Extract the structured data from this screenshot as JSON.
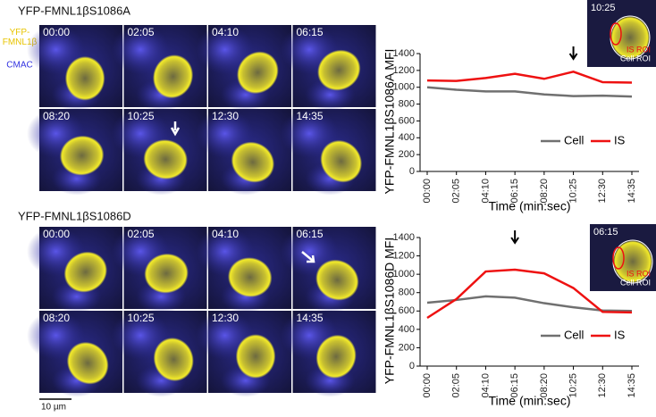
{
  "chart_data": [
    {
      "type": "line",
      "y_label": "YFP-FMNL1βS1086A MFI",
      "x_label": "Time (min:sec)",
      "categories": [
        "00:00",
        "02:05",
        "04:10",
        "06:15",
        "08:20",
        "10:25",
        "12:30",
        "14:35"
      ],
      "series": [
        {
          "name": "Cell",
          "color": "#707070",
          "values": [
            1000,
            970,
            950,
            950,
            915,
            895,
            900,
            890
          ]
        },
        {
          "name": "IS",
          "color": "#ee1111",
          "values": [
            1080,
            1075,
            1110,
            1160,
            1100,
            1185,
            1060,
            1055
          ]
        }
      ],
      "ylim": [
        0,
        1400
      ],
      "yticks": [
        0,
        200,
        400,
        600,
        800,
        1000,
        1200,
        1400
      ],
      "legend": "lower-right"
    },
    {
      "type": "line",
      "y_label": "YFP-FMNL1βS1086D MFI",
      "x_label": "Time (min:sec)",
      "categories": [
        "00:00",
        "02:05",
        "04:10",
        "06:15",
        "08:20",
        "10:25",
        "12:30",
        "14:35"
      ],
      "series": [
        {
          "name": "Cell",
          "color": "#707070",
          "values": [
            690,
            720,
            760,
            745,
            685,
            640,
            605,
            600
          ]
        },
        {
          "name": "IS",
          "color": "#ee1111",
          "values": [
            525,
            730,
            1030,
            1050,
            1010,
            850,
            590,
            585
          ]
        }
      ],
      "ylim": [
        0,
        1400
      ],
      "yticks": [
        0,
        200,
        400,
        600,
        800,
        1000,
        1200,
        1400
      ],
      "legend": "lower-right"
    }
  ],
  "panels": [
    {
      "title": "YFP-FMNL1βS1086A",
      "inset_time": "10:25",
      "inset_is": "IS ROI",
      "inset_cell": "Cell ROI"
    },
    {
      "title": "YFP-FMNL1βS1086D",
      "inset_time": "06:15",
      "inset_is": "IS ROI",
      "inset_cell": "Cell ROI"
    }
  ],
  "channel_yfp": "YFP-\nFMNL1β",
  "channel_cmac": "CMAC",
  "scale_bar": "10 µm"
}
